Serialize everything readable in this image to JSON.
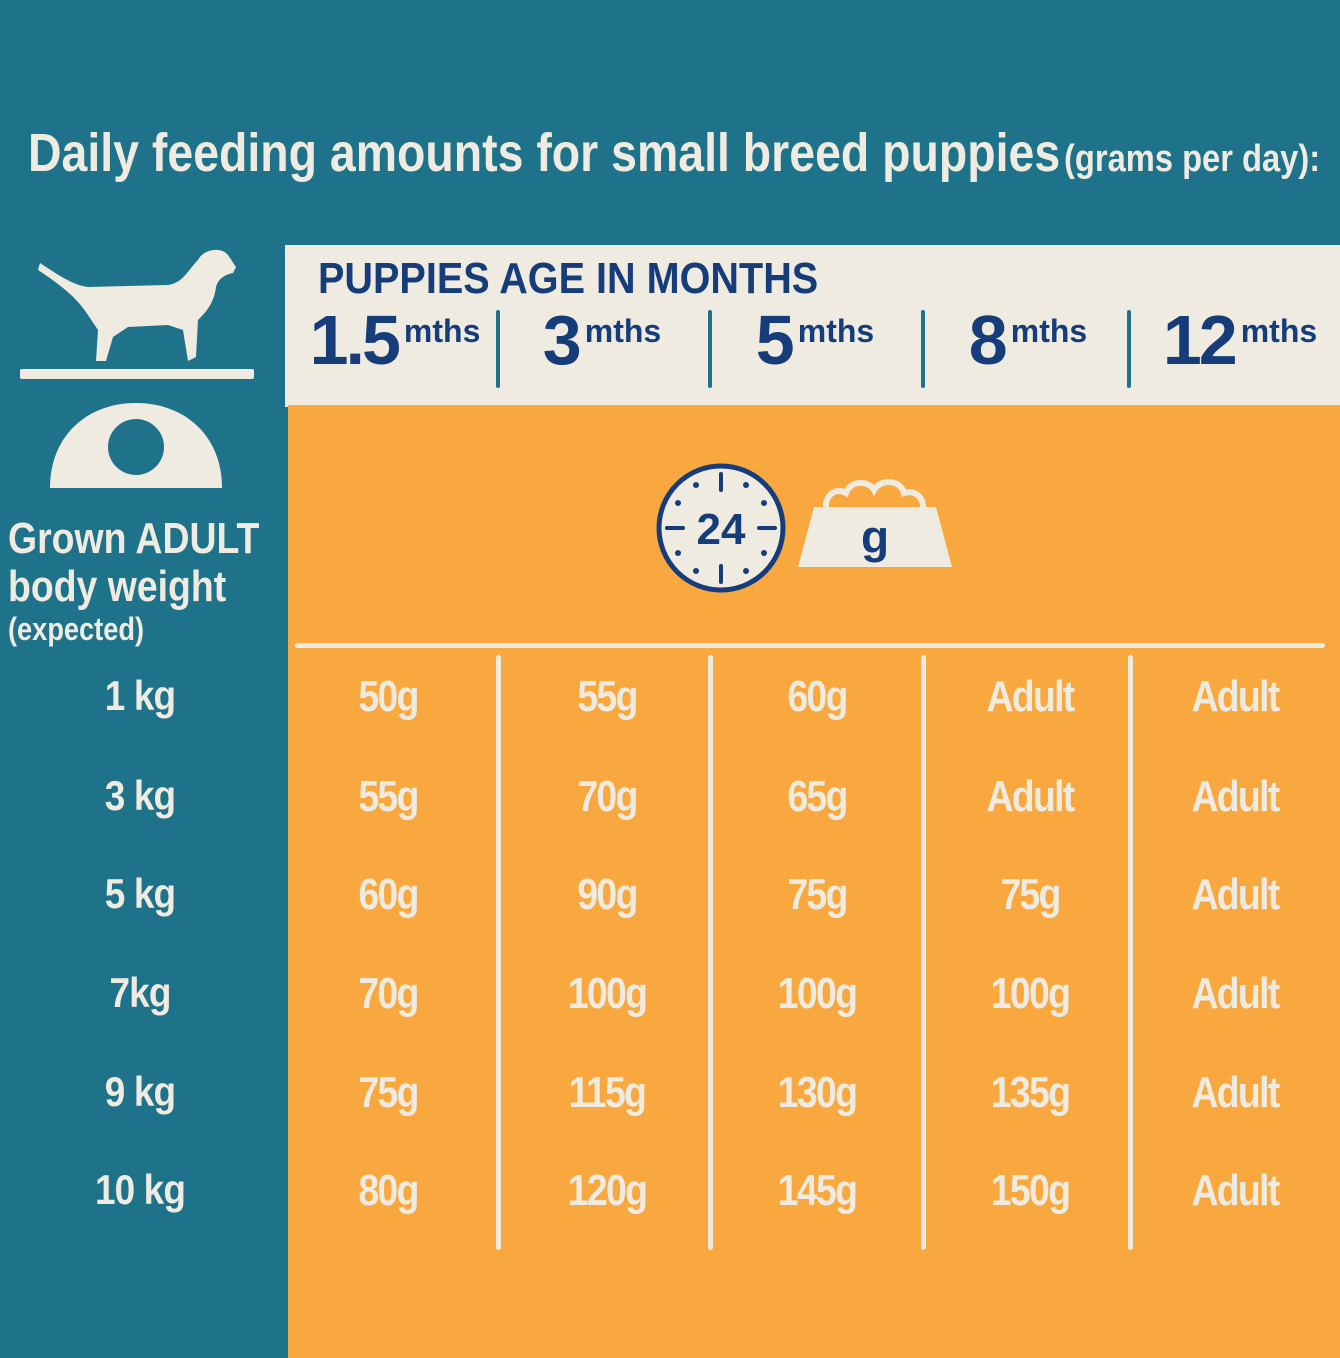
{
  "title": {
    "main": "Daily feeding amounts for small breed puppies",
    "sub": "(grams per day):"
  },
  "header": {
    "label": "PUPPIES AGE IN MONTHS",
    "unit": "mths",
    "ages": [
      "1.5",
      "3",
      "5",
      "8",
      "12"
    ]
  },
  "icons": {
    "clock_number": "24",
    "bowl_unit": "g",
    "left": "dog-on-scale-icon"
  },
  "row_header": {
    "line1": "Grown ADULT",
    "line2": "body weight",
    "line3": "(expected)"
  },
  "rows": [
    {
      "weight": "1 kg",
      "values": [
        "50g",
        "55g",
        "60g",
        "Adult",
        "Adult"
      ]
    },
    {
      "weight": "3 kg",
      "values": [
        "55g",
        "70g",
        "65g",
        "Adult",
        "Adult"
      ]
    },
    {
      "weight": "5 kg",
      "values": [
        "60g",
        "90g",
        "75g",
        "75g",
        "Adult"
      ]
    },
    {
      "weight": "7kg",
      "values": [
        "70g",
        "100g",
        "100g",
        "100g",
        "Adult"
      ]
    },
    {
      "weight": "9 kg",
      "values": [
        "75g",
        "115g",
        "130g",
        "135g",
        "Adult"
      ]
    },
    {
      "weight": "10 kg",
      "values": [
        "80g",
        "120g",
        "145g",
        "150g",
        "Adult"
      ]
    }
  ],
  "colors": {
    "teal": "#1e728a",
    "orange": "#f9a83f",
    "cream": "#efebe1",
    "navy": "#163d7a"
  }
}
